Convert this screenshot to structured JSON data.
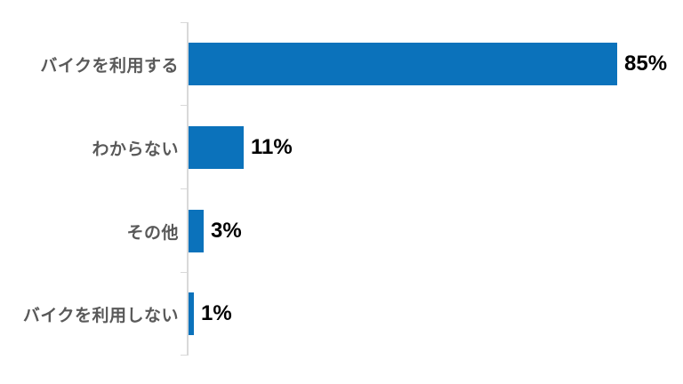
{
  "chart_data": {
    "type": "bar",
    "orientation": "horizontal",
    "title": "",
    "xlabel": "",
    "ylabel": "",
    "categories": [
      "バイクを利用する",
      "わからない",
      "その他",
      "バイクを利用しない"
    ],
    "values": [
      85,
      11,
      3,
      1
    ],
    "value_labels": [
      "85%",
      "11%",
      "3%",
      "1%"
    ],
    "xlim": [
      0,
      90
    ],
    "grid": false,
    "legend": false,
    "colors": {
      "bar": "#0B72BB",
      "axis_line": "#D9D9D9",
      "category_label": "#595959",
      "value_label": "#000000",
      "background": "#FFFFFF"
    }
  }
}
